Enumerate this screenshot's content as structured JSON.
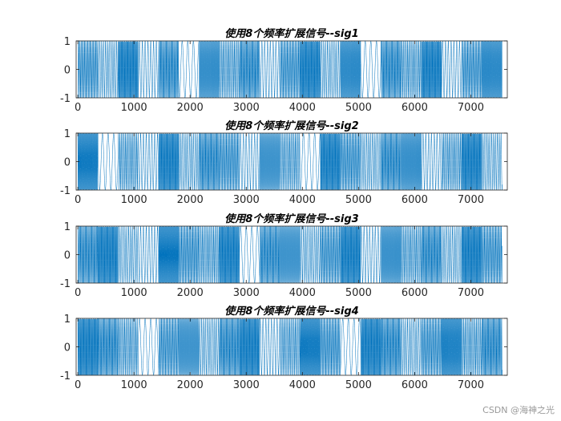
{
  "chart_data": [
    {
      "type": "line",
      "title": "使用8个频率扩展信号--sig1",
      "xlim": [
        -30,
        7650
      ],
      "ylim": [
        -1,
        1
      ],
      "xticks": [
        0,
        1000,
        2000,
        3000,
        4000,
        5000,
        6000,
        7000
      ],
      "yticks": [
        -1,
        0,
        1
      ],
      "grid": false,
      "color": "#0072BD",
      "samples": 7560,
      "segment_length": 360,
      "hop_frequency_index": [
        5,
        3,
        8,
        2,
        6,
        1,
        7,
        4,
        6,
        2,
        5,
        8,
        3,
        7,
        1,
        6,
        4,
        8,
        2,
        5,
        7
      ]
    },
    {
      "type": "line",
      "title": "使用8个频率扩展信号--sig2",
      "xlim": [
        -30,
        7650
      ],
      "ylim": [
        -1,
        1
      ],
      "xticks": [
        0,
        1000,
        2000,
        3000,
        4000,
        5000,
        6000,
        7000
      ],
      "yticks": [
        -1,
        0,
        1
      ],
      "grid": false,
      "color": "#0072BD",
      "samples": 7560,
      "segment_length": 360,
      "hop_frequency_index": [
        7,
        1,
        4,
        2,
        8,
        3,
        6,
        5,
        2,
        7,
        4,
        1,
        8,
        5,
        3,
        6,
        7,
        2,
        4,
        8,
        3
      ]
    },
    {
      "type": "line",
      "title": "使用8个频率扩展信号--sig3",
      "xlim": [
        -30,
        7650
      ],
      "ylim": [
        -1,
        1
      ],
      "xticks": [
        0,
        1000,
        2000,
        3000,
        4000,
        5000,
        6000,
        7000
      ],
      "yticks": [
        -1,
        0,
        1
      ],
      "grid": false,
      "color": "#0072BD",
      "samples": 7560,
      "segment_length": 360,
      "hop_frequency_index": [
        6,
        8,
        3,
        2,
        7,
        5,
        4,
        8,
        1,
        6,
        7,
        3,
        5,
        8,
        2,
        7,
        4,
        6,
        3,
        8,
        5
      ]
    },
    {
      "type": "line",
      "title": "使用8个频率扩展信号--sig4",
      "xlim": [
        -30,
        7650
      ],
      "ylim": [
        -1,
        1
      ],
      "xticks": [
        0,
        1000,
        2000,
        3000,
        4000,
        5000,
        6000,
        7000
      ],
      "yticks": [
        -1,
        0,
        1
      ],
      "grid": false,
      "color": "#0072BD",
      "samples": 7560,
      "segment_length": 360,
      "hop_frequency_index": [
        8,
        6,
        4,
        1,
        5,
        7,
        3,
        6,
        8,
        2,
        4,
        7,
        5,
        1,
        8,
        6,
        3,
        5,
        7,
        4,
        6
      ]
    }
  ],
  "watermark": "CSDN @海神之光"
}
